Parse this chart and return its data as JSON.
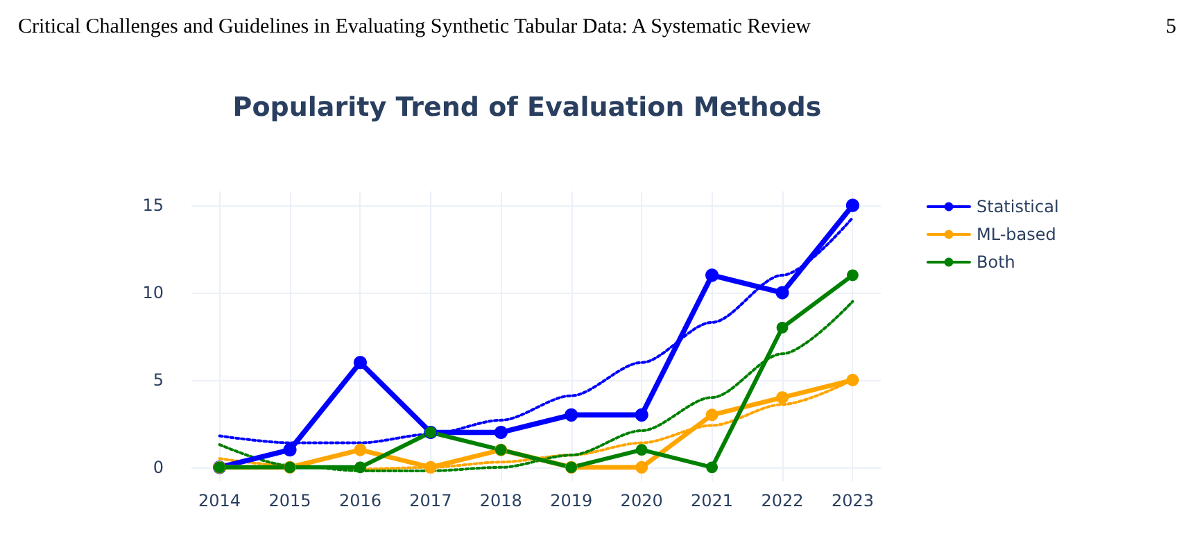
{
  "chart_data": {
    "type": "line",
    "title": "Popularity Trend of Evaluation Methods",
    "annotations": [
      "Critical Challenges and Guidelines in Evaluating Synthetic Tabular Data: A Systematic Review",
      "5"
    ],
    "x": [
      2014,
      2015,
      2016,
      2017,
      2018,
      2019,
      2020,
      2021,
      2022,
      2023
    ],
    "series": [
      {
        "name": "Statistical",
        "color": "#0000ff",
        "values": [
          0,
          1,
          6,
          2,
          2,
          3,
          3,
          11,
          10,
          15
        ]
      },
      {
        "name": "ML-based",
        "color": "#ffa500",
        "values": [
          0,
          0,
          1,
          0,
          1,
          0,
          0,
          3,
          4,
          5
        ]
      },
      {
        "name": "Both",
        "color": "#008000",
        "values": [
          0,
          0,
          0,
          2,
          1,
          0,
          1,
          0,
          8,
          11
        ]
      },
      {
        "color": "#0000ff",
        "line_style": "dotted",
        "marker": "none",
        "values": [
          1.8,
          1.4,
          1.4,
          1.9,
          2.7,
          4.1,
          6,
          8.3,
          11,
          14.3
        ]
      },
      {
        "color": "#ffa500",
        "line_style": "dotted",
        "marker": "none",
        "values": [
          0.5,
          0.1,
          -0.1,
          0,
          0.3,
          0.7,
          1.4,
          2.4,
          3.6,
          5
        ]
      },
      {
        "color": "#008000",
        "line_style": "dotted",
        "marker": "none",
        "values": [
          1.3,
          0.1,
          -0.2,
          -0.2,
          0,
          0.7,
          2.1,
          4,
          6.5,
          9.5
        ]
      }
    ],
    "xlim": [
      2013.6,
      2023.4
    ],
    "xticks": [
      2014,
      2015,
      2016,
      2017,
      2018,
      2019,
      2020,
      2021,
      2022,
      2023
    ],
    "ylim": [
      -0.8,
      15.8
    ],
    "yticks": [
      0,
      5,
      10,
      15
    ],
    "grid": true,
    "legend": "top right",
    "marker": "circle",
    "line_style": "solid"
  }
}
